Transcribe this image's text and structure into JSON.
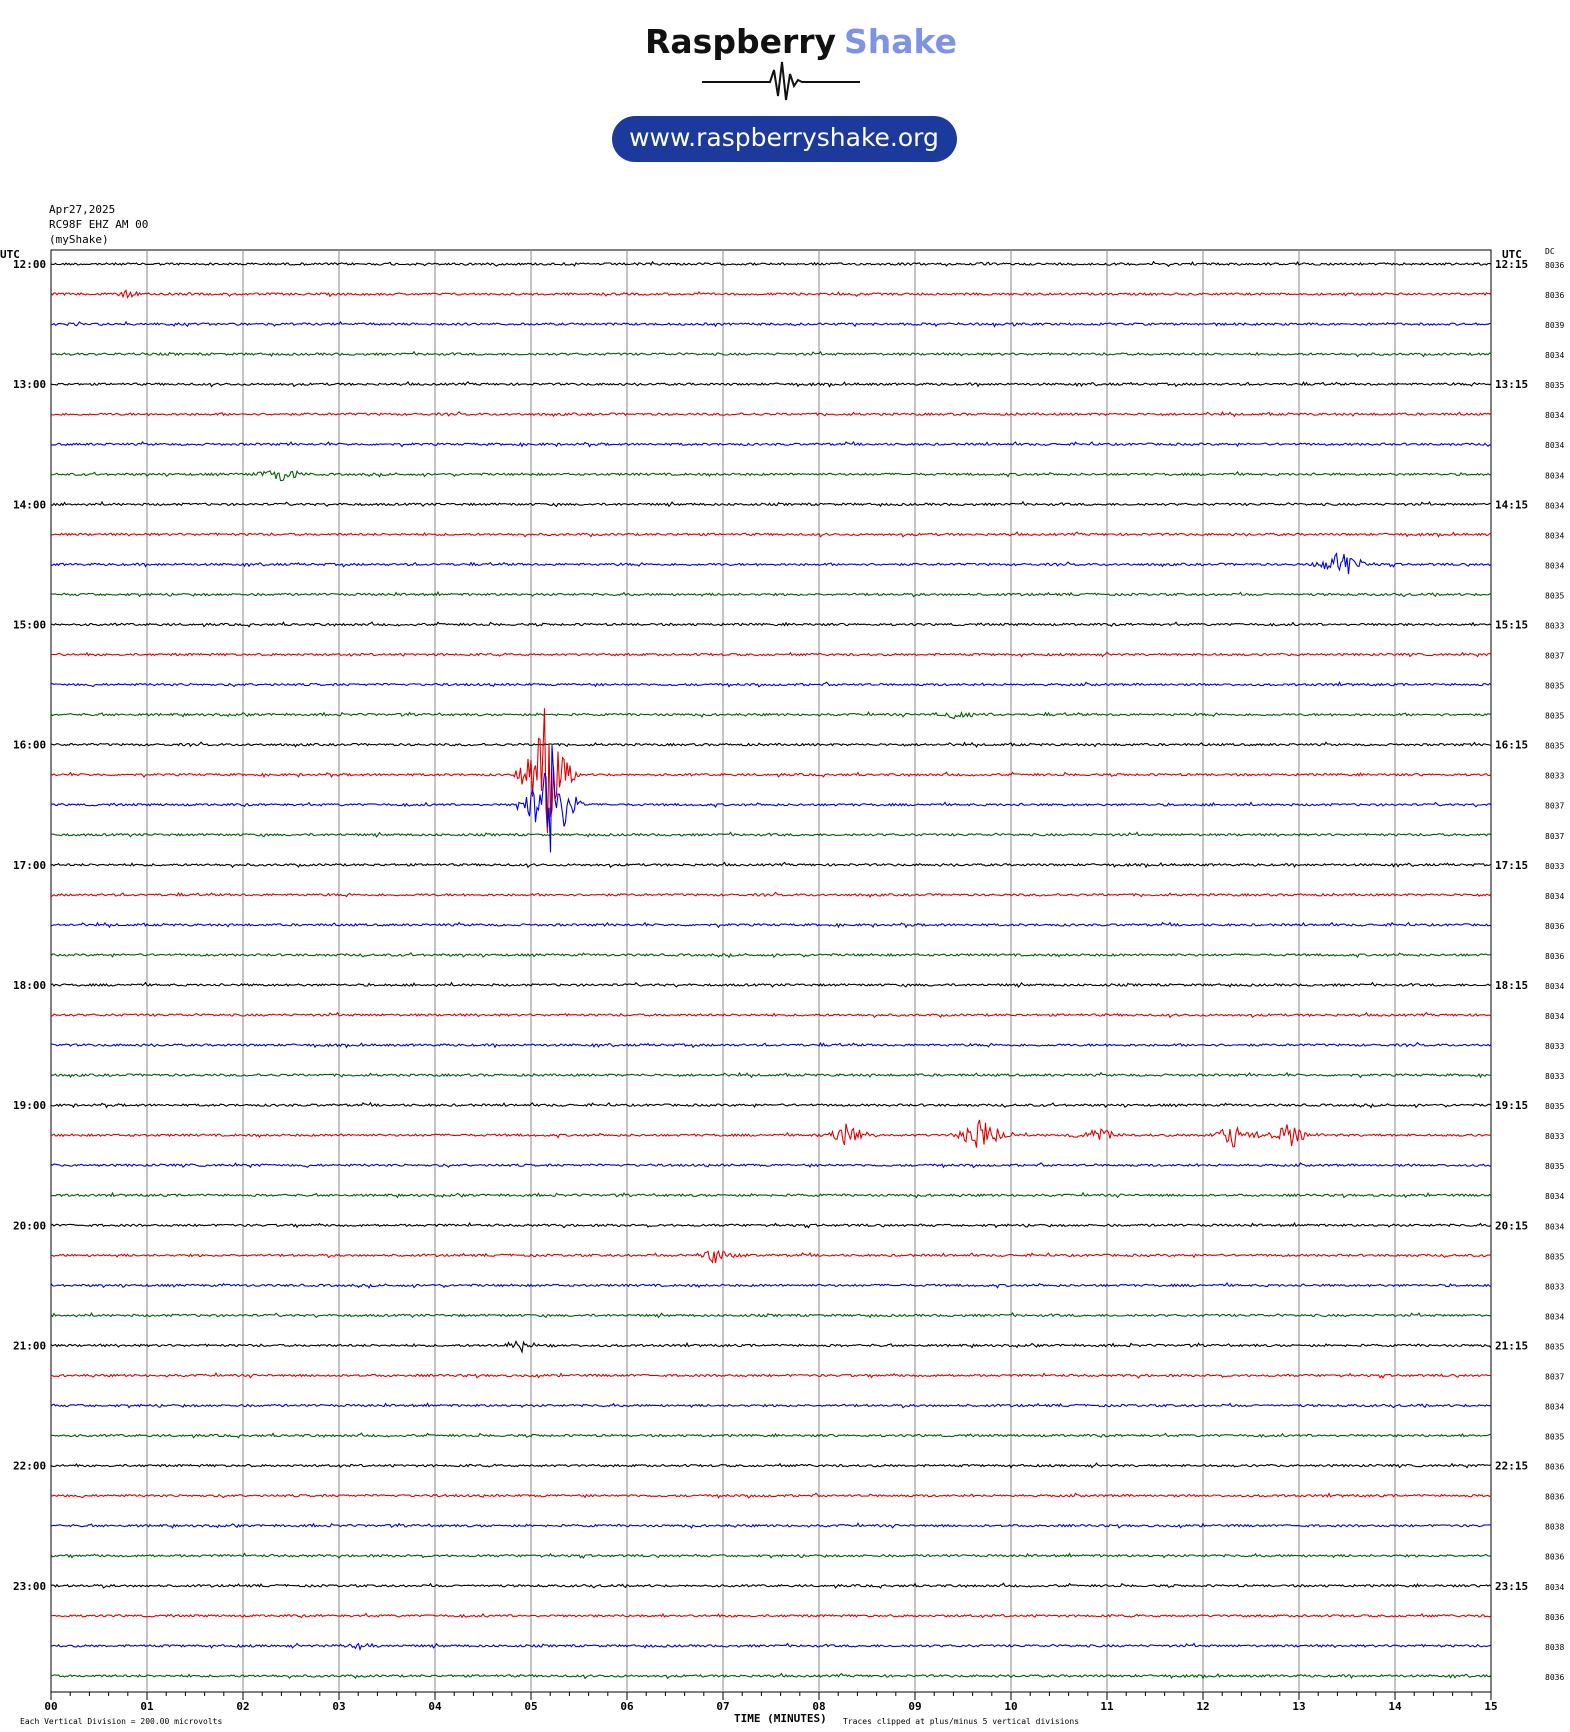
{
  "brand": {
    "name_dark": "Raspberry",
    "name_light": "Shake",
    "url": "www.raspberryshake.org",
    "colors": {
      "dark": "#111111",
      "light": "#7f93e6",
      "pill": "#1b3a9c"
    }
  },
  "header": {
    "date": "Apr27,2025",
    "station": "RC98F EHZ AM 00",
    "network": "(myShake)"
  },
  "axis_labels": {
    "left_utc": "UTC",
    "right_utc": "UTC",
    "dc": "DC",
    "xlabel": "TIME (MINUTES)",
    "scale_note": "Each Vertical Division =  200.00 microvolts",
    "clip_note": "Traces clipped at plus/minus 5 vertical divisions"
  },
  "chart_data": {
    "type": "line",
    "title": "",
    "xlabel": "TIME (MINUTES)",
    "ylabel": "",
    "xlim": [
      0,
      15
    ],
    "x_ticks": [
      "00",
      "01",
      "02",
      "03",
      "04",
      "05",
      "06",
      "07",
      "08",
      "09",
      "10",
      "11",
      "12",
      "13",
      "14",
      "15"
    ],
    "rows_per_hour": 4,
    "hour_labels_left": [
      "12:00",
      "13:00",
      "14:00",
      "15:00",
      "16:00",
      "17:00",
      "18:00",
      "19:00",
      "20:00",
      "21:00",
      "22:00",
      "23:00"
    ],
    "hour_labels_right": [
      "12:15",
      "13:15",
      "14:15",
      "15:15",
      "16:15",
      "17:15",
      "18:15",
      "19:15",
      "20:15",
      "21:15",
      "22:15",
      "23:15"
    ],
    "trace_colors": [
      "#000000",
      "#e00000",
      "#0000e0",
      "#006000"
    ],
    "dc_offsets": [
      "8036",
      "8036",
      "8039",
      "8034",
      "8035",
      "8034",
      "8034",
      "8034",
      "8034",
      "8034",
      "8034",
      "8035",
      "8033",
      "8037",
      "8035",
      "8035",
      "8035",
      "8033",
      "8037",
      "8037",
      "8033",
      "8034",
      "8036",
      "8036",
      "8034",
      "8034",
      "8033",
      "8033",
      "8035",
      "8033",
      "8035",
      "8034",
      "8034",
      "8035",
      "8033",
      "8034",
      "8035",
      "8037",
      "8034",
      "8035",
      "8036",
      "8036",
      "8038",
      "8036",
      "8034",
      "8036",
      "8038",
      "8036"
    ],
    "grid": true,
    "events": [
      {
        "row": 1,
        "minute": 0.8,
        "amp": 0.3
      },
      {
        "row": 7,
        "minute": 2.4,
        "amp": 0.6
      },
      {
        "row": 10,
        "minute": 13.45,
        "amp": 1.2
      },
      {
        "row": 15,
        "minute": 9.45,
        "amp": 0.4
      },
      {
        "row": 17,
        "minute": 5.15,
        "amp": 5.0
      },
      {
        "row": 18,
        "minute": 5.2,
        "amp": 5.0
      },
      {
        "row": 29,
        "minute": 8.3,
        "amp": 1.0
      },
      {
        "row": 29,
        "minute": 9.7,
        "amp": 1.5
      },
      {
        "row": 29,
        "minute": 10.9,
        "amp": 0.6
      },
      {
        "row": 29,
        "minute": 12.3,
        "amp": 1.0
      },
      {
        "row": 29,
        "minute": 12.9,
        "amp": 1.0
      },
      {
        "row": 33,
        "minute": 6.9,
        "amp": 0.6
      },
      {
        "row": 36,
        "minute": 4.9,
        "amp": 0.4
      },
      {
        "row": 46,
        "minute": 3.2,
        "amp": 0.3
      }
    ]
  }
}
